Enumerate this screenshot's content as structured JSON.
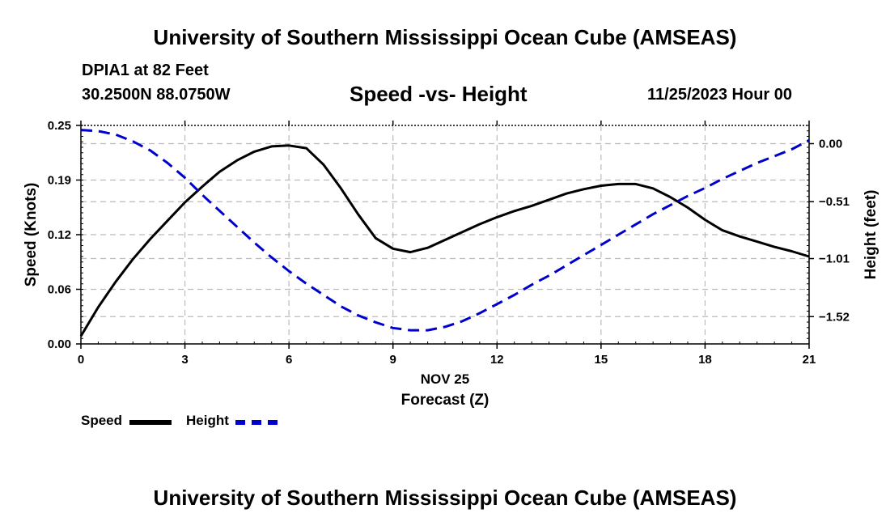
{
  "header": {
    "title": "University of Southern Mississippi Ocean Cube (AMSEAS)",
    "station": "DPIA1 at 82 Feet",
    "location": "30.2500N  88.0750W",
    "chart_title": "Speed -vs- Height",
    "datetime": "11/25/2023 Hour 00"
  },
  "footer": {
    "title": "University of Southern Mississippi Ocean Cube (AMSEAS)"
  },
  "legend": {
    "speed_label": "Speed",
    "height_label": "Height"
  },
  "colors": {
    "speed": "#000000",
    "height": "#0000cc",
    "grid": "#bbbbbb"
  },
  "chart_data": {
    "type": "line",
    "title": "Speed -vs- Height",
    "xlabel": "Forecast (Z)",
    "xsublabel": "NOV 25",
    "ylabel": "Speed (Knots)",
    "y2label": "Height (feet)",
    "xlim": [
      0,
      21
    ],
    "ylim": [
      0,
      0.25
    ],
    "y2lim": [
      -1.76,
      0.16
    ],
    "x_ticks": [
      0,
      3,
      6,
      9,
      12,
      15,
      18,
      21
    ],
    "x_tick_labels": [
      "0",
      "3",
      "6",
      "9",
      "12",
      "15",
      "18",
      "21"
    ],
    "y_ticks": [
      0.0,
      0.0625,
      0.125,
      0.1875,
      0.25
    ],
    "y_tick_labels": [
      "0.00",
      "0.06",
      "0.12",
      "0.19",
      "0.25"
    ],
    "y2_ticks": [
      0.0,
      -0.51,
      -1.01,
      -1.52
    ],
    "y2_tick_labels": [
      "0.00",
      "−0.51",
      "−1.01",
      "−1.52"
    ],
    "grid": true,
    "series": [
      {
        "name": "Speed",
        "axis": "left",
        "style": "solid",
        "x": [
          0,
          0.5,
          1,
          1.5,
          2,
          2.5,
          3,
          3.5,
          4,
          4.5,
          5,
          5.5,
          6,
          6.5,
          7,
          7.5,
          8,
          8.5,
          9,
          9.5,
          10,
          10.5,
          11,
          11.5,
          12,
          12.5,
          13,
          13.5,
          14,
          14.5,
          15,
          15.5,
          16,
          16.5,
          17,
          17.5,
          18,
          18.5,
          19,
          19.5,
          20,
          20.5,
          21
        ],
        "values": [
          0.009,
          0.042,
          0.071,
          0.097,
          0.12,
          0.141,
          0.162,
          0.18,
          0.197,
          0.21,
          0.22,
          0.226,
          0.227,
          0.224,
          0.205,
          0.178,
          0.148,
          0.121,
          0.109,
          0.105,
          0.11,
          0.119,
          0.128,
          0.137,
          0.145,
          0.152,
          0.158,
          0.165,
          0.172,
          0.177,
          0.181,
          0.183,
          0.183,
          0.178,
          0.168,
          0.156,
          0.142,
          0.13,
          0.123,
          0.117,
          0.111,
          0.106,
          0.1
        ]
      },
      {
        "name": "Height",
        "axis": "right",
        "style": "dashed",
        "x": [
          0,
          0.5,
          1,
          1.5,
          2,
          2.5,
          3,
          3.5,
          4,
          4.5,
          5,
          5.5,
          6,
          6.5,
          7,
          7.5,
          8,
          8.5,
          9,
          9.5,
          10,
          10.5,
          11,
          11.5,
          12,
          12.5,
          13,
          13.5,
          14,
          14.5,
          15,
          15.5,
          16,
          16.5,
          17,
          17.5,
          18,
          18.5,
          19,
          19.5,
          20,
          20.5,
          21
        ],
        "values": [
          0.12,
          0.11,
          0.08,
          0.02,
          -0.06,
          -0.17,
          -0.3,
          -0.45,
          -0.59,
          -0.73,
          -0.87,
          -1.0,
          -1.12,
          -1.23,
          -1.33,
          -1.43,
          -1.51,
          -1.57,
          -1.62,
          -1.64,
          -1.64,
          -1.61,
          -1.56,
          -1.49,
          -1.41,
          -1.33,
          -1.24,
          -1.16,
          -1.07,
          -0.98,
          -0.89,
          -0.8,
          -0.71,
          -0.62,
          -0.54,
          -0.46,
          -0.39,
          -0.31,
          -0.24,
          -0.17,
          -0.11,
          -0.05,
          0.03
        ]
      }
    ]
  }
}
